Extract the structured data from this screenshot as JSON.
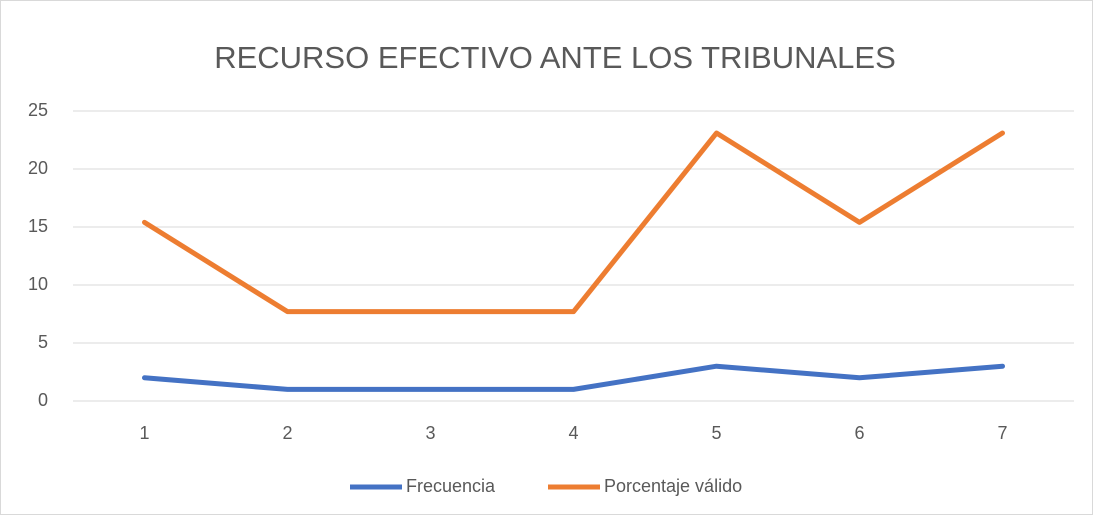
{
  "chart_data": {
    "type": "line",
    "title": "RECURSO EFECTIVO ANTE LOS TRIBUNALES",
    "categories": [
      "1",
      "2",
      "3",
      "4",
      "5",
      "6",
      "7"
    ],
    "series": [
      {
        "name": "Frecuencia",
        "color": "#4472c4",
        "values": [
          2,
          1,
          1,
          1,
          3,
          2,
          3
        ]
      },
      {
        "name": "Porcentaje válido",
        "color": "#ed7d31",
        "values": [
          15.4,
          7.7,
          7.7,
          7.7,
          23.1,
          15.4,
          23.1
        ]
      }
    ],
    "ylim": [
      0,
      25
    ],
    "yticks": [
      0,
      5,
      10,
      15,
      20,
      25
    ],
    "grid": true,
    "legend": "bottom"
  }
}
